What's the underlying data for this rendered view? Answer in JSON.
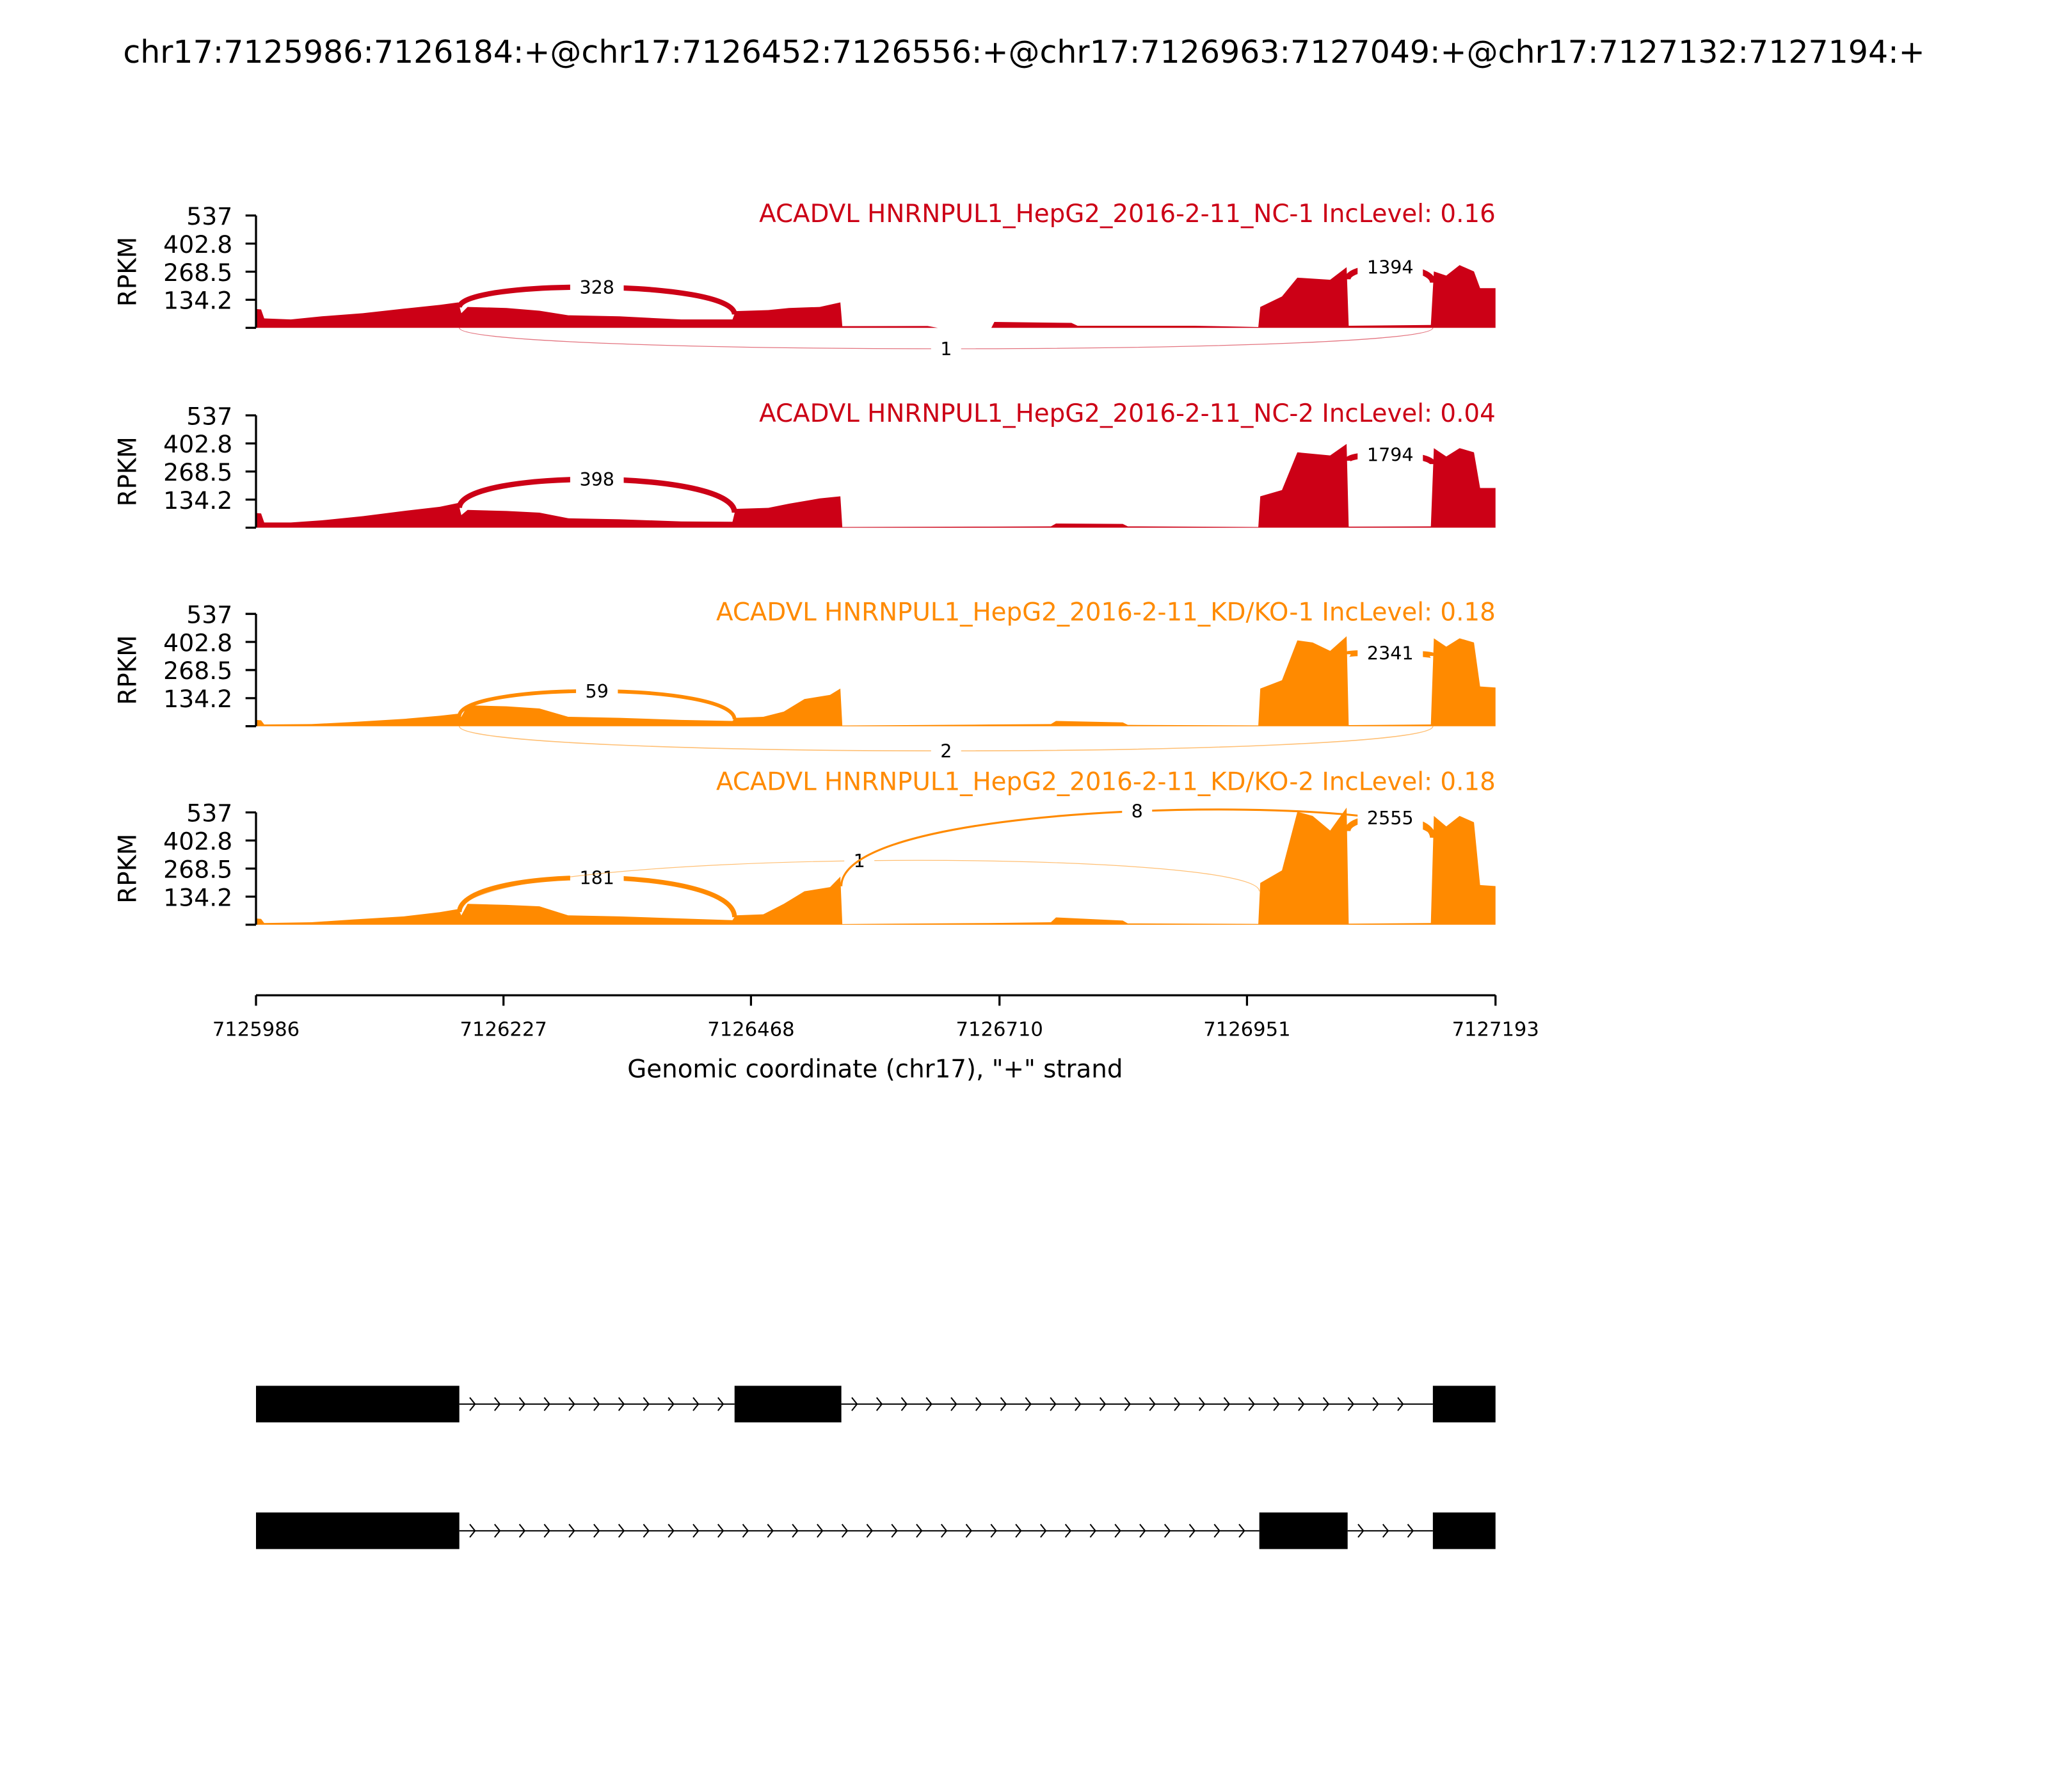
{
  "title": "chr17:7125986:7126184:+@chr17:7126452:7126556:+@chr17:7126963:7127049:+@chr17:7127132:7127194:+",
  "colors": {
    "nc": "#cc0016",
    "kd": "#ff8a00"
  },
  "chart_data": {
    "type": "area",
    "chart_kind": "sashimi",
    "xlabel": "Genomic coordinate (chr17), \"+\" strand",
    "ylabel": "RPKM",
    "xlim": [
      7125986,
      7127193
    ],
    "xticks": [
      "7125986",
      "7126227",
      "7126468",
      "7126710",
      "7126951",
      "7127193"
    ],
    "xtick_values": [
      7125986,
      7126227,
      7126468,
      7126710,
      7126951,
      7127193
    ],
    "ylim": [
      0,
      537
    ],
    "yticks": [
      "537",
      "402.8",
      "268.5",
      "134.2"
    ],
    "ytick_values": [
      537,
      402.8,
      268.5,
      134.2
    ],
    "panels": [
      {
        "label": "ACADVL HNRNPUL1_HepG2_2016-2-11_NC-1 IncLevel: 0.16",
        "group": "nc",
        "coverage": [
          [
            7125986,
            90
          ],
          [
            7125991,
            88
          ],
          [
            7125994,
            45
          ],
          [
            7126020,
            40
          ],
          [
            7126050,
            55
          ],
          [
            7126090,
            70
          ],
          [
            7126130,
            92
          ],
          [
            7126165,
            110
          ],
          [
            7126183,
            122
          ],
          [
            7126186,
            70
          ],
          [
            7126192,
            100
          ],
          [
            7126230,
            95
          ],
          [
            7126262,
            82
          ],
          [
            7126290,
            60
          ],
          [
            7126340,
            55
          ],
          [
            7126400,
            40
          ],
          [
            7126450,
            40
          ],
          [
            7126453,
            80
          ],
          [
            7126485,
            85
          ],
          [
            7126505,
            95
          ],
          [
            7126535,
            100
          ],
          [
            7126555,
            122
          ],
          [
            7126557,
            8
          ],
          [
            7126640,
            9
          ],
          [
            7126650,
            0
          ],
          [
            7126702,
            0
          ],
          [
            7126705,
            28
          ],
          [
            7126780,
            24
          ],
          [
            7126786,
            10
          ],
          [
            7126900,
            10
          ],
          [
            7126962,
            4
          ],
          [
            7126964,
            100
          ],
          [
            7126985,
            150
          ],
          [
            7127000,
            240
          ],
          [
            7127032,
            230
          ],
          [
            7127048,
            290
          ],
          [
            7127050,
            10
          ],
          [
            7127130,
            14
          ],
          [
            7127133,
            270
          ],
          [
            7127145,
            250
          ],
          [
            7127158,
            300
          ],
          [
            7127172,
            270
          ],
          [
            7127178,
            190
          ],
          [
            7127193,
            190
          ]
        ],
        "junctions": [
          {
            "start": 7126184,
            "end": 7126452,
            "count": "328",
            "side": "above"
          },
          {
            "start": 7127049,
            "end": 7127132,
            "count": "1394",
            "side": "above"
          },
          {
            "start": 7126184,
            "end": 7127132,
            "count": "1",
            "side": "below"
          }
        ]
      },
      {
        "label": "ACADVL HNRNPUL1_HepG2_2016-2-11_NC-2 IncLevel: 0.04",
        "group": "nc",
        "coverage": [
          [
            7125986,
            70
          ],
          [
            7125991,
            68
          ],
          [
            7125994,
            25
          ],
          [
            7126020,
            25
          ],
          [
            7126050,
            35
          ],
          [
            7126090,
            55
          ],
          [
            7126130,
            80
          ],
          [
            7126165,
            100
          ],
          [
            7126183,
            118
          ],
          [
            7126186,
            60
          ],
          [
            7126192,
            85
          ],
          [
            7126230,
            80
          ],
          [
            7126262,
            72
          ],
          [
            7126290,
            45
          ],
          [
            7126340,
            40
          ],
          [
            7126400,
            30
          ],
          [
            7126450,
            28
          ],
          [
            7126453,
            90
          ],
          [
            7126485,
            95
          ],
          [
            7126505,
            115
          ],
          [
            7126535,
            140
          ],
          [
            7126555,
            150
          ],
          [
            7126557,
            3
          ],
          [
            7126700,
            5
          ],
          [
            7126760,
            6
          ],
          [
            7126765,
            20
          ],
          [
            7126830,
            18
          ],
          [
            7126835,
            6
          ],
          [
            7126962,
            3
          ],
          [
            7126964,
            150
          ],
          [
            7126985,
            180
          ],
          [
            7127000,
            360
          ],
          [
            7127032,
            345
          ],
          [
            7127048,
            400
          ],
          [
            7127050,
            5
          ],
          [
            7127130,
            6
          ],
          [
            7127133,
            380
          ],
          [
            7127145,
            340
          ],
          [
            7127158,
            380
          ],
          [
            7127172,
            360
          ],
          [
            7127178,
            190
          ],
          [
            7127193,
            190
          ]
        ],
        "junctions": [
          {
            "start": 7126184,
            "end": 7126452,
            "count": "398",
            "side": "above"
          },
          {
            "start": 7127049,
            "end": 7127132,
            "count": "1794",
            "side": "above"
          }
        ]
      },
      {
        "label": "ACADVL HNRNPUL1_HepG2_2016-2-11_KD/KO-1 IncLevel: 0.18",
        "group": "kd",
        "coverage": [
          [
            7125986,
            30
          ],
          [
            7125991,
            28
          ],
          [
            7125994,
            8
          ],
          [
            7126040,
            10
          ],
          [
            7126080,
            20
          ],
          [
            7126130,
            35
          ],
          [
            7126165,
            50
          ],
          [
            7126183,
            60
          ],
          [
            7126186,
            45
          ],
          [
            7126192,
            100
          ],
          [
            7126230,
            95
          ],
          [
            7126262,
            85
          ],
          [
            7126290,
            45
          ],
          [
            7126340,
            40
          ],
          [
            7126400,
            30
          ],
          [
            7126450,
            25
          ],
          [
            7126453,
            40
          ],
          [
            7126480,
            45
          ],
          [
            7126500,
            70
          ],
          [
            7126520,
            130
          ],
          [
            7126545,
            150
          ],
          [
            7126555,
            180
          ],
          [
            7126557,
            3
          ],
          [
            7126700,
            8
          ],
          [
            7126760,
            10
          ],
          [
            7126765,
            25
          ],
          [
            7126830,
            18
          ],
          [
            7126835,
            6
          ],
          [
            7126962,
            4
          ],
          [
            7126964,
            180
          ],
          [
            7126985,
            220
          ],
          [
            7127000,
            410
          ],
          [
            7127015,
            400
          ],
          [
            7127032,
            360
          ],
          [
            7127048,
            430
          ],
          [
            7127050,
            5
          ],
          [
            7127130,
            8
          ],
          [
            7127133,
            420
          ],
          [
            7127145,
            380
          ],
          [
            7127158,
            420
          ],
          [
            7127172,
            400
          ],
          [
            7127178,
            190
          ],
          [
            7127193,
            185
          ]
        ],
        "junctions": [
          {
            "start": 7126184,
            "end": 7126452,
            "count": "59",
            "side": "above"
          },
          {
            "start": 7127049,
            "end": 7127132,
            "count": "2341",
            "side": "above"
          },
          {
            "start": 7126184,
            "end": 7127132,
            "count": "2",
            "side": "below"
          }
        ]
      },
      {
        "label": "ACADVL HNRNPUL1_HepG2_2016-2-11_KD/KO-2 IncLevel: 0.18",
        "group": "kd",
        "coverage": [
          [
            7125986,
            30
          ],
          [
            7125991,
            28
          ],
          [
            7125994,
            8
          ],
          [
            7126040,
            12
          ],
          [
            7126080,
            25
          ],
          [
            7126130,
            40
          ],
          [
            7126165,
            60
          ],
          [
            7126183,
            75
          ],
          [
            7126186,
            45
          ],
          [
            7126192,
            100
          ],
          [
            7126230,
            95
          ],
          [
            7126262,
            88
          ],
          [
            7126290,
            45
          ],
          [
            7126340,
            40
          ],
          [
            7126400,
            30
          ],
          [
            7126450,
            22
          ],
          [
            7126453,
            45
          ],
          [
            7126480,
            50
          ],
          [
            7126500,
            100
          ],
          [
            7126520,
            160
          ],
          [
            7126545,
            180
          ],
          [
            7126555,
            230
          ],
          [
            7126557,
            3
          ],
          [
            7126700,
            8
          ],
          [
            7126760,
            12
          ],
          [
            7126765,
            35
          ],
          [
            7126830,
            20
          ],
          [
            7126835,
            6
          ],
          [
            7126962,
            4
          ],
          [
            7126964,
            200
          ],
          [
            7126985,
            260
          ],
          [
            7127000,
            540
          ],
          [
            7127015,
            520
          ],
          [
            7127032,
            450
          ],
          [
            7127048,
            560
          ],
          [
            7127050,
            5
          ],
          [
            7127130,
            8
          ],
          [
            7127133,
            520
          ],
          [
            7127145,
            470
          ],
          [
            7127158,
            520
          ],
          [
            7127172,
            490
          ],
          [
            7127178,
            190
          ],
          [
            7127193,
            185
          ]
        ],
        "junctions": [
          {
            "start": 7126184,
            "end": 7126452,
            "count": "181",
            "side": "above"
          },
          {
            "start": 7126184,
            "end": 7126963,
            "count": "1",
            "side": "above"
          },
          {
            "start": 7126556,
            "end": 7127132,
            "count": "8",
            "side": "above"
          },
          {
            "start": 7127049,
            "end": 7127132,
            "count": "2555",
            "side": "above"
          }
        ]
      }
    ],
    "transcripts": [
      {
        "exons": [
          [
            7125986,
            7126184
          ],
          [
            7126452,
            7126556
          ],
          [
            7127132,
            7127193
          ]
        ]
      },
      {
        "exons": [
          [
            7125986,
            7126184
          ],
          [
            7126963,
            7127049
          ],
          [
            7127132,
            7127193
          ]
        ]
      }
    ]
  }
}
